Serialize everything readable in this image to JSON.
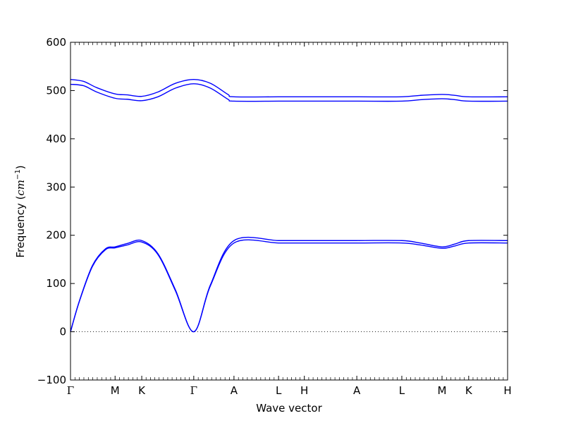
{
  "chart_data": {
    "type": "line",
    "title": "",
    "xlabel": "Wave vector",
    "ylabel": "Frequency (cm⁻¹)",
    "ylabel_prefix": "Frequency (",
    "ylabel_units": "cm",
    "ylabel_exp": "−1",
    "ylabel_suffix": ")",
    "xlim": [
      0,
      1
    ],
    "ylim": [
      -100,
      600
    ],
    "yticks": [
      -100,
      0,
      100,
      200,
      300,
      400,
      500,
      600
    ],
    "ytick_labels": [
      "−100",
      "0",
      "100",
      "200",
      "300",
      "400",
      "500",
      "600"
    ],
    "high_symmetry_points": [
      {
        "label": "Γ",
        "x": 0.0
      },
      {
        "label": "M",
        "x": 0.102
      },
      {
        "label": "K",
        "x": 0.163
      },
      {
        "label": "Γ",
        "x": 0.282
      },
      {
        "label": "A",
        "x": 0.374
      },
      {
        "label": "L",
        "x": 0.476
      },
      {
        "label": "H",
        "x": 0.535
      },
      {
        "label": "A",
        "x": 0.655
      },
      {
        "label": "L",
        "x": 0.758
      },
      {
        "label": "M",
        "x": 0.85
      },
      {
        "label": "K",
        "x": 0.911
      },
      {
        "label": "H",
        "x": 1.0
      }
    ],
    "zero_line": {
      "y": 0,
      "style": "dotted"
    },
    "series_color": "#0000ff",
    "series": [
      {
        "x": [
          0,
          0.02,
          0.05,
          0.08,
          0.102,
          0.13,
          0.163,
          0.2,
          0.24,
          0.282,
          0.32,
          0.374,
          0.476,
          0.535,
          0.655,
          0.758,
          0.8,
          0.85,
          0.88,
          0.911,
          1.0
        ],
        "values": [
          0,
          62,
          135,
          170,
          174,
          180,
          186,
          160,
          85,
          0,
          95,
          184,
          184,
          184,
          184,
          184,
          180,
          173,
          178,
          184,
          184
        ]
      },
      {
        "x": [
          0,
          0.02,
          0.05,
          0.08,
          0.102,
          0.13,
          0.163,
          0.2,
          0.24,
          0.282,
          0.32,
          0.374,
          0.476,
          0.535,
          0.655,
          0.758,
          0.8,
          0.85,
          0.88,
          0.911,
          1.0
        ],
        "values": [
          0,
          63,
          137,
          172,
          176,
          183,
          189,
          162,
          87,
          0,
          97,
          189,
          189,
          189,
          189,
          189,
          184,
          176,
          182,
          189,
          189
        ]
      },
      {
        "x": [
          0,
          0.03,
          0.06,
          0.102,
          0.13,
          0.163,
          0.2,
          0.24,
          0.282,
          0.32,
          0.36,
          0.374,
          0.476,
          0.535,
          0.655,
          0.758,
          0.8,
          0.85,
          0.88,
          0.911,
          1.0
        ],
        "values": [
          513,
          510,
          497,
          484,
          482,
          479,
          487,
          505,
          514,
          505,
          482,
          478,
          478,
          478,
          478,
          478,
          481,
          483,
          481,
          478,
          478
        ]
      },
      {
        "x": [
          0,
          0.03,
          0.06,
          0.102,
          0.13,
          0.163,
          0.2,
          0.24,
          0.282,
          0.32,
          0.36,
          0.374,
          0.476,
          0.535,
          0.655,
          0.758,
          0.8,
          0.85,
          0.88,
          0.911,
          1.0
        ],
        "values": [
          523,
          519,
          506,
          493,
          491,
          488,
          497,
          515,
          523,
          515,
          492,
          487,
          487,
          487,
          487,
          487,
          490,
          492,
          490,
          487,
          487
        ]
      }
    ]
  }
}
